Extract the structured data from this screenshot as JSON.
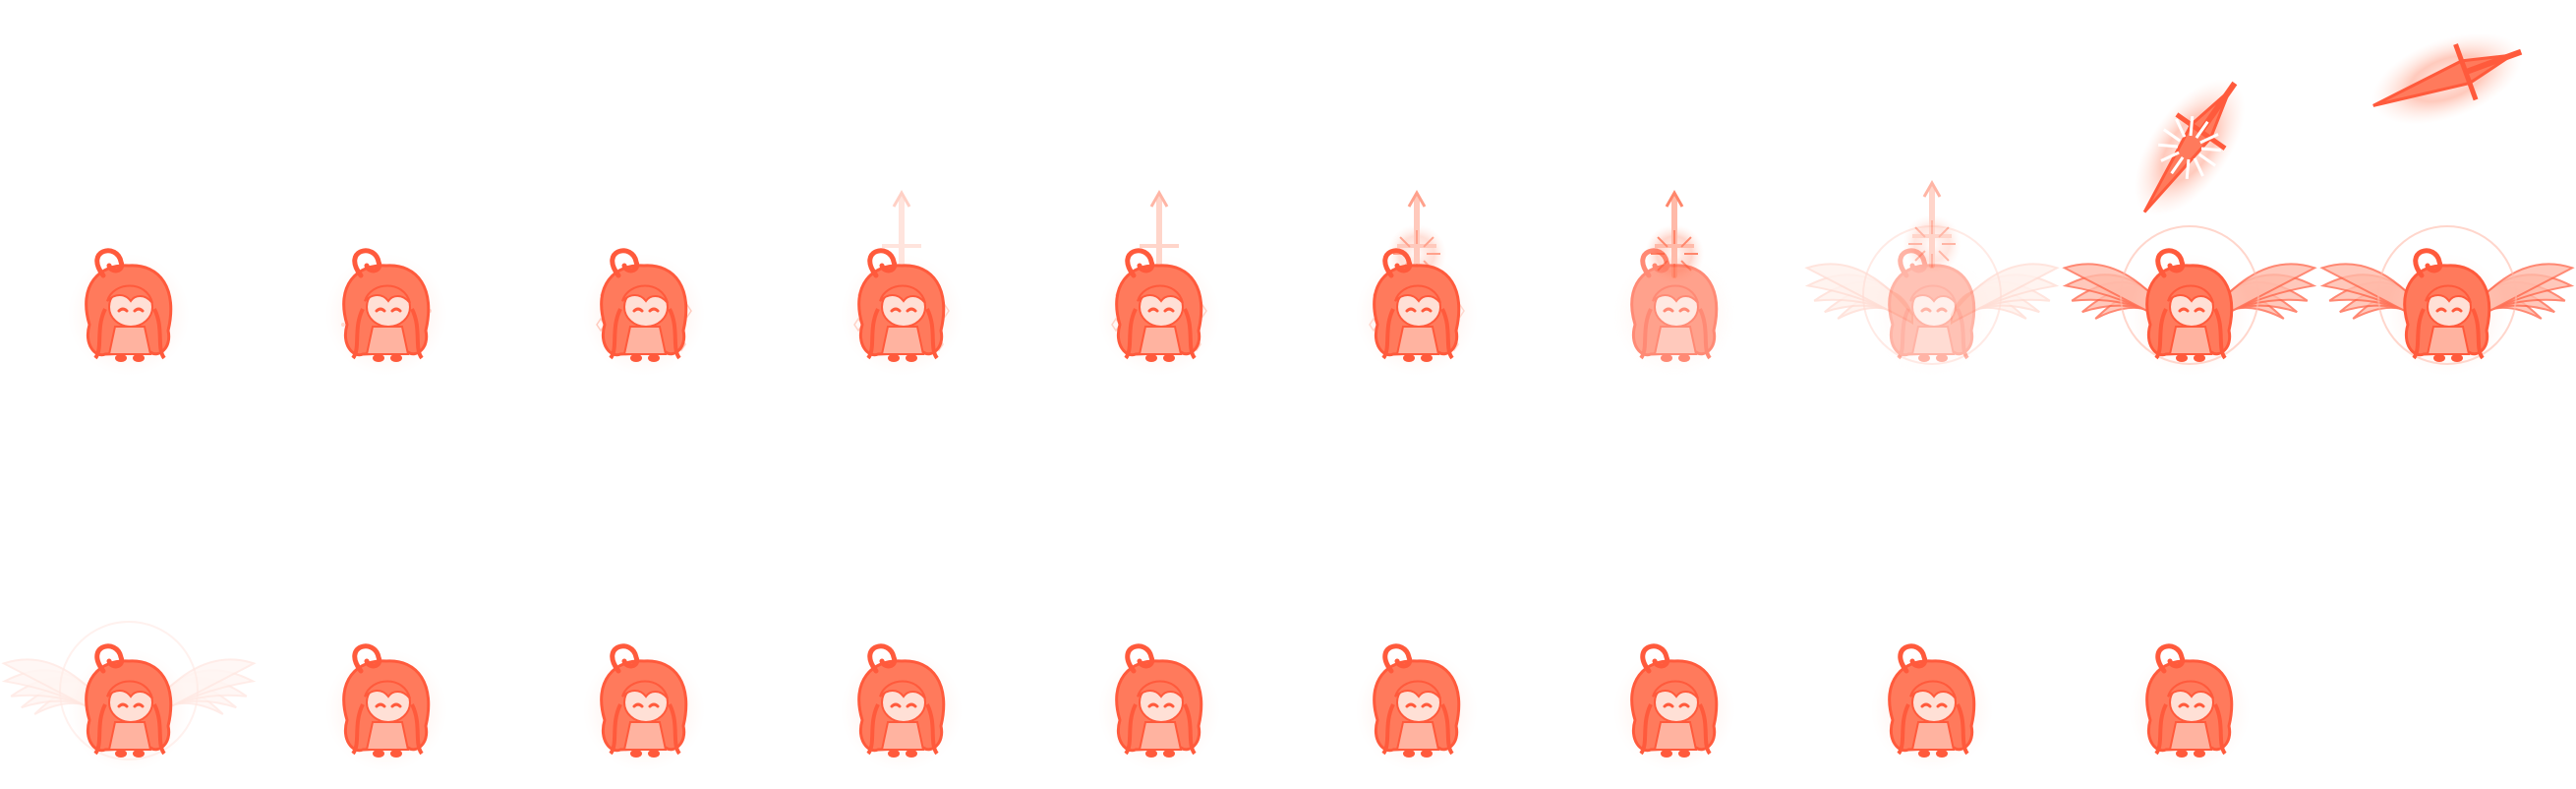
{
  "sprite_sheet": {
    "description_note": "",
    "palette": {
      "primary": "#ff5a3c",
      "mid": "#ff7a5c",
      "light": "#ffb3a0",
      "pale": "#ffe0d6",
      "white": "#ffffff"
    },
    "rows": [
      {
        "frames": [
          {
            "effect": "none"
          },
          {
            "effect": "faint-sparkles"
          },
          {
            "effect": "diamond-sparkles"
          },
          {
            "effect": "sword-outline-faint"
          },
          {
            "effect": "sword-outline"
          },
          {
            "effect": "sword-glow"
          },
          {
            "effect": "sword-glow-strong"
          },
          {
            "effect": "wings-faint"
          },
          {
            "effect": "wings-sword-burst"
          },
          {
            "effect": "wings-sword-fly"
          }
        ]
      },
      {
        "frames": [
          {
            "effect": "wings-fade"
          },
          {
            "effect": "none"
          },
          {
            "effect": "none"
          },
          {
            "effect": "none"
          },
          {
            "effect": "none"
          },
          {
            "effect": "none"
          },
          {
            "effect": "none"
          },
          {
            "effect": "none"
          },
          {
            "effect": "none"
          }
        ]
      }
    ]
  }
}
